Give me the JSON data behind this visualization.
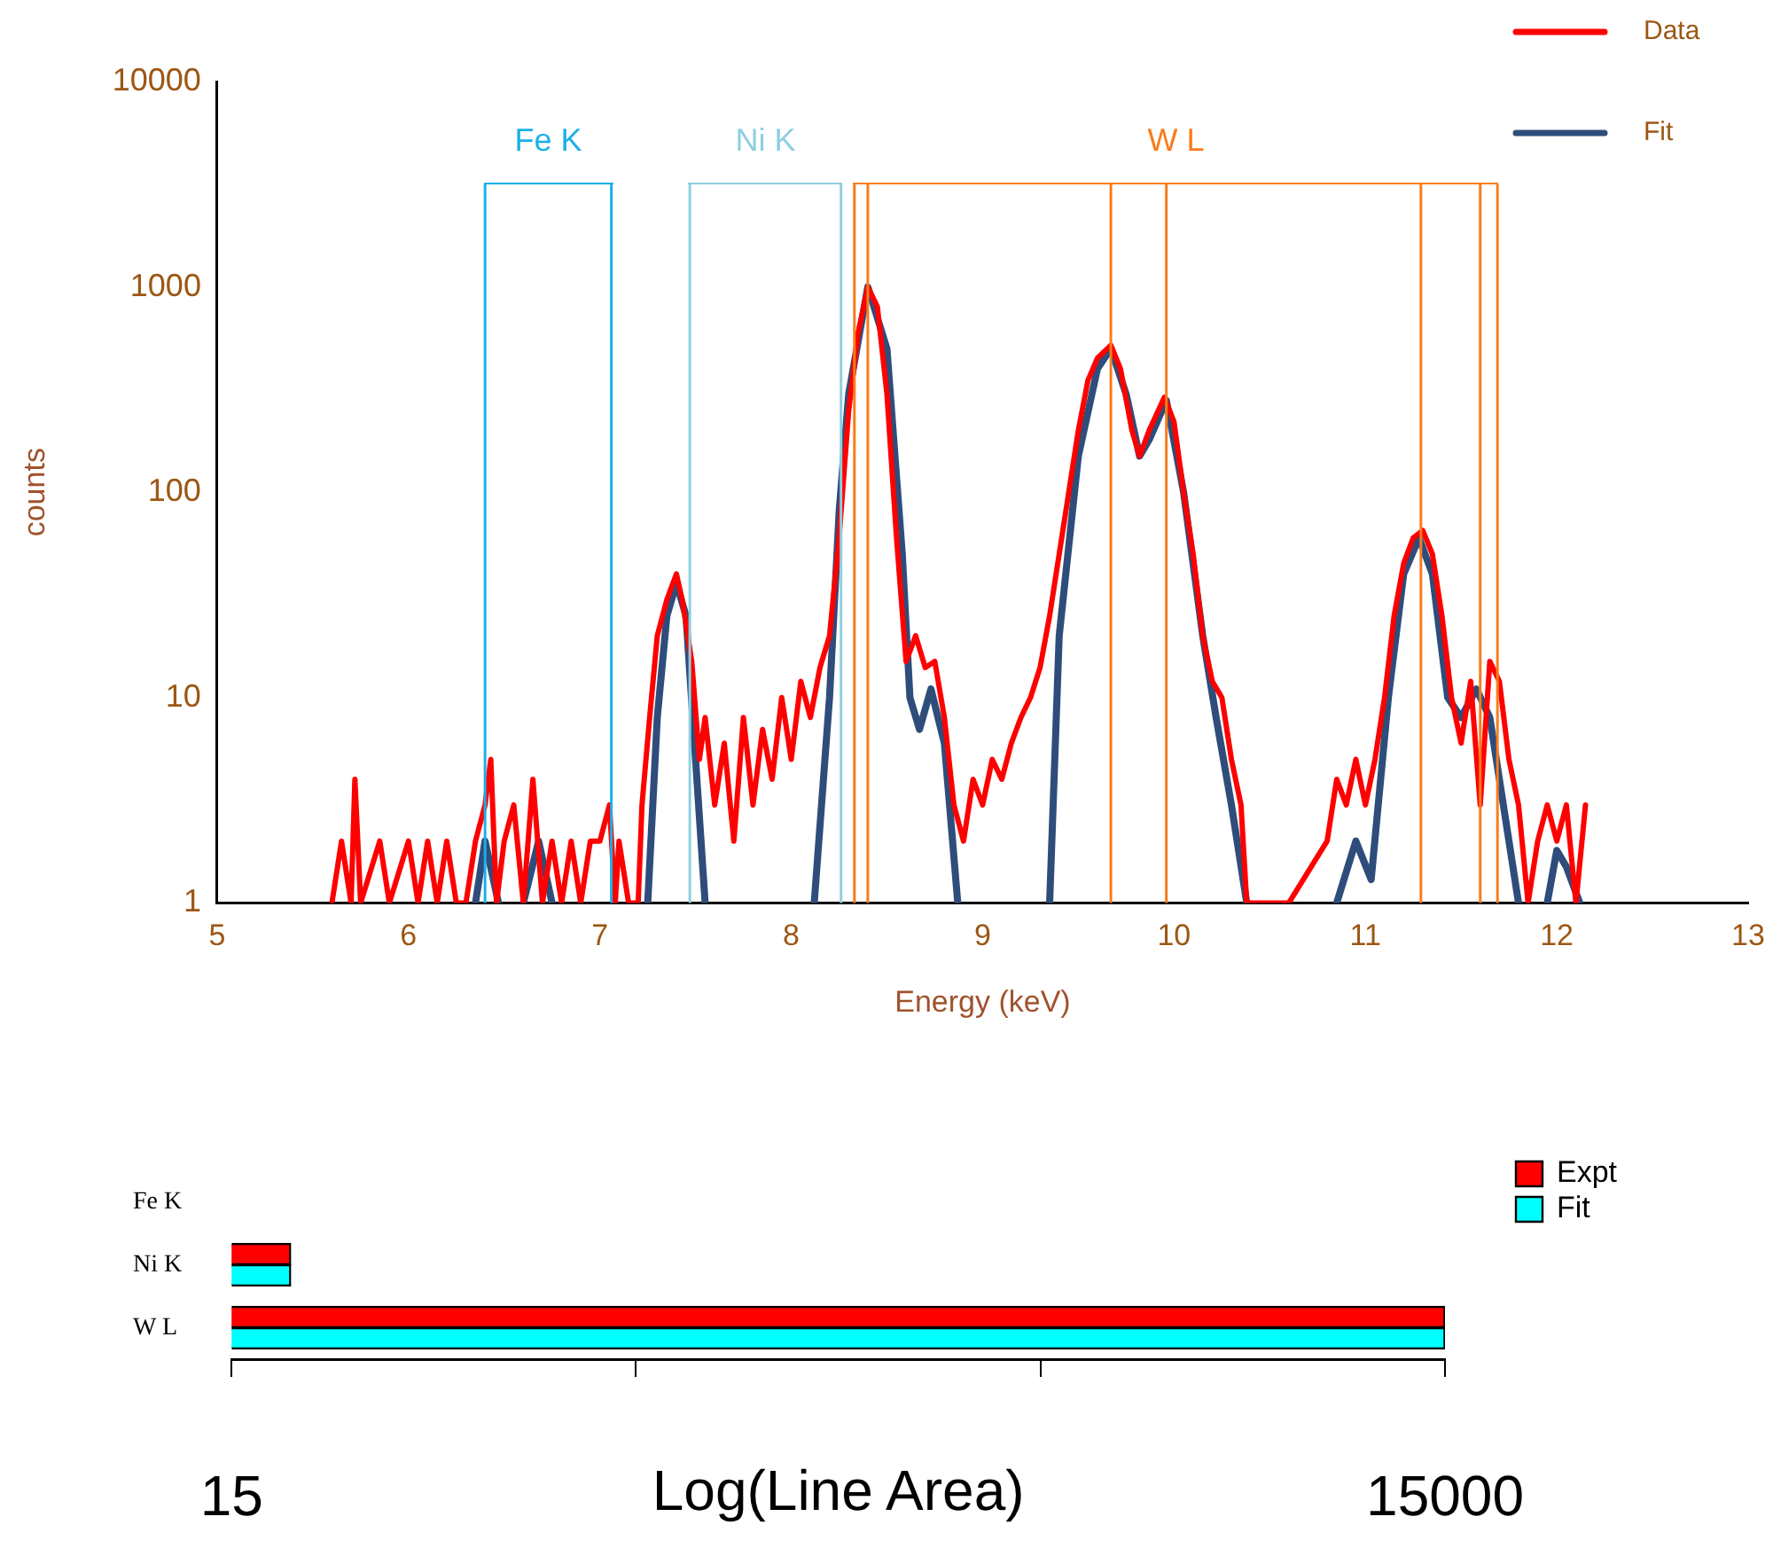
{
  "chart_data": [
    {
      "type": "line",
      "xlabel": "Energy (keV)",
      "ylabel": "counts",
      "xlim": [
        5,
        13
      ],
      "xticks": [
        5,
        6,
        7,
        8,
        9,
        10,
        11,
        12,
        13
      ],
      "ylim": [
        1,
        10000
      ],
      "yticks": [
        1,
        10,
        100,
        1000,
        10000
      ],
      "log": "y",
      "legend": "top right",
      "series": [
        {
          "name": "Data",
          "color": "#ff0000",
          "x": [
            5.6,
            5.65,
            5.7,
            5.72,
            5.75,
            5.85,
            5.9,
            6.0,
            6.05,
            6.1,
            6.15,
            6.2,
            6.25,
            6.3,
            6.35,
            6.4,
            6.43,
            6.46,
            6.5,
            6.55,
            6.6,
            6.65,
            6.7,
            6.75,
            6.8,
            6.85,
            6.9,
            6.95,
            7.0,
            7.05,
            7.08,
            7.1,
            7.15,
            7.2,
            7.22,
            7.26,
            7.3,
            7.35,
            7.4,
            7.43,
            7.48,
            7.52,
            7.55,
            7.6,
            7.65,
            7.7,
            7.75,
            7.8,
            7.85,
            7.9,
            7.95,
            8.0,
            8.05,
            8.1,
            8.15,
            8.2,
            8.25,
            8.3,
            8.35,
            8.4,
            8.45,
            8.5,
            8.55,
            8.6,
            8.65,
            8.7,
            8.75,
            8.8,
            8.85,
            8.9,
            8.95,
            9.0,
            9.05,
            9.1,
            9.15,
            9.2,
            9.25,
            9.3,
            9.35,
            9.4,
            9.45,
            9.5,
            9.55,
            9.6,
            9.67,
            9.72,
            9.78,
            9.82,
            9.87,
            9.95,
            10.0,
            10.05,
            10.1,
            10.15,
            10.2,
            10.25,
            10.3,
            10.35,
            10.38,
            10.6,
            10.8,
            10.85,
            10.9,
            10.95,
            11.0,
            11.05,
            11.1,
            11.15,
            11.2,
            11.25,
            11.3,
            11.35,
            11.4,
            11.45,
            11.5,
            11.55,
            11.6,
            11.65,
            11.7,
            11.75,
            11.8,
            11.85,
            11.9,
            11.95,
            12.0,
            12.05,
            12.1,
            12.15
          ],
          "values": [
            1,
            2,
            1,
            4,
            1,
            2,
            1,
            2,
            1,
            2,
            1,
            2,
            1,
            1,
            2,
            3,
            5,
            1,
            2,
            3,
            1,
            4,
            1,
            2,
            1,
            2,
            1,
            2,
            2,
            3,
            1,
            2,
            1,
            1,
            3,
            8,
            20,
            30,
            40,
            30,
            15,
            5,
            8,
            3,
            6,
            2,
            8,
            3,
            7,
            4,
            10,
            5,
            12,
            8,
            14,
            20,
            60,
            250,
            600,
            1000,
            800,
            300,
            60,
            15,
            20,
            14,
            15,
            8,
            3,
            2,
            4,
            3,
            5,
            4,
            6,
            8,
            10,
            14,
            25,
            50,
            100,
            200,
            350,
            450,
            520,
            400,
            200,
            150,
            200,
            290,
            220,
            100,
            50,
            20,
            12,
            10,
            5,
            3,
            1,
            1,
            2,
            4,
            3,
            5,
            3,
            5,
            10,
            25,
            45,
            60,
            65,
            50,
            25,
            10,
            6,
            12,
            3,
            15,
            12,
            5,
            3,
            1,
            2,
            3,
            2,
            3,
            1,
            3
          ]
        },
        {
          "name": "Fit",
          "color": "#2e4d7b",
          "x": [
            6.35,
            6.4,
            6.47,
            6.55,
            6.6,
            6.68,
            6.75,
            6.9,
            7.25,
            7.3,
            7.35,
            7.4,
            7.45,
            7.5,
            7.55,
            7.8,
            8.12,
            8.2,
            8.25,
            8.3,
            8.4,
            8.5,
            8.58,
            8.62,
            8.67,
            8.73,
            8.8,
            8.87,
            9.1,
            9.35,
            9.4,
            9.5,
            9.6,
            9.67,
            9.75,
            9.82,
            9.87,
            9.96,
            10.05,
            10.15,
            10.22,
            10.3,
            10.38,
            10.6,
            10.85,
            10.95,
            11.03,
            11.12,
            11.2,
            11.28,
            11.35,
            11.43,
            11.5,
            11.58,
            11.65,
            11.75,
            11.8,
            11.9,
            11.95,
            12.0,
            12.05,
            12.12
          ],
          "values": [
            1,
            2,
            1,
            null,
            1,
            2,
            1,
            null,
            1,
            8,
            25,
            36,
            25,
            5,
            1,
            null,
            1,
            10,
            80,
            300,
            1000,
            500,
            50,
            10,
            7,
            11,
            6,
            1,
            null,
            1,
            20,
            150,
            400,
            500,
            300,
            150,
            180,
            280,
            100,
            20,
            8,
            3,
            1,
            null,
            1,
            2,
            1.3,
            10,
            40,
            60,
            40,
            10,
            8,
            11,
            8,
            2,
            1,
            null,
            1,
            1.8,
            1.5,
            1
          ]
        }
      ],
      "ref_lines": [
        {
          "axis": "x",
          "value": 6.4,
          "label": "Fe K",
          "color": "#1ab0e8"
        },
        {
          "axis": "x",
          "value": 7.06,
          "color": "#1ab0e8"
        },
        {
          "axis": "x",
          "value": 7.47,
          "label": "Ni K",
          "color": "#8ecfe0"
        },
        {
          "axis": "x",
          "value": 8.26,
          "color": "#8ecfe0"
        },
        {
          "axis": "x",
          "value": 8.33,
          "label": "W L",
          "color": "#f97c1c"
        },
        {
          "axis": "x",
          "value": 8.4,
          "color": "#f97c1c"
        },
        {
          "axis": "x",
          "value": 9.67,
          "color": "#f97c1c"
        },
        {
          "axis": "x",
          "value": 9.96,
          "color": "#f97c1c"
        },
        {
          "axis": "x",
          "value": 11.29,
          "color": "#f97c1c"
        },
        {
          "axis": "x",
          "value": 11.6,
          "color": "#f97c1c"
        },
        {
          "axis": "x",
          "value": 11.69,
          "color": "#f97c1c"
        }
      ]
    },
    {
      "type": "bar",
      "orientation": "horizontal",
      "categories": [
        "Fe K",
        "Ni K",
        "W L"
      ],
      "xlim": [
        15,
        15000
      ],
      "xticks": [
        15,
        {
          "value": 150,
          "label": null
        },
        {
          "value": 1500,
          "label": null
        },
        15000
      ],
      "log": "x",
      "xlabel": "Log(Line Area)",
      "legend": "top right",
      "series": [
        {
          "name": "Expt",
          "color": "#ff0000",
          "values": [
            null,
            21,
            15000
          ]
        },
        {
          "name": "Fit",
          "color": "#00ffff",
          "values": [
            null,
            21,
            15000
          ]
        }
      ]
    }
  ]
}
